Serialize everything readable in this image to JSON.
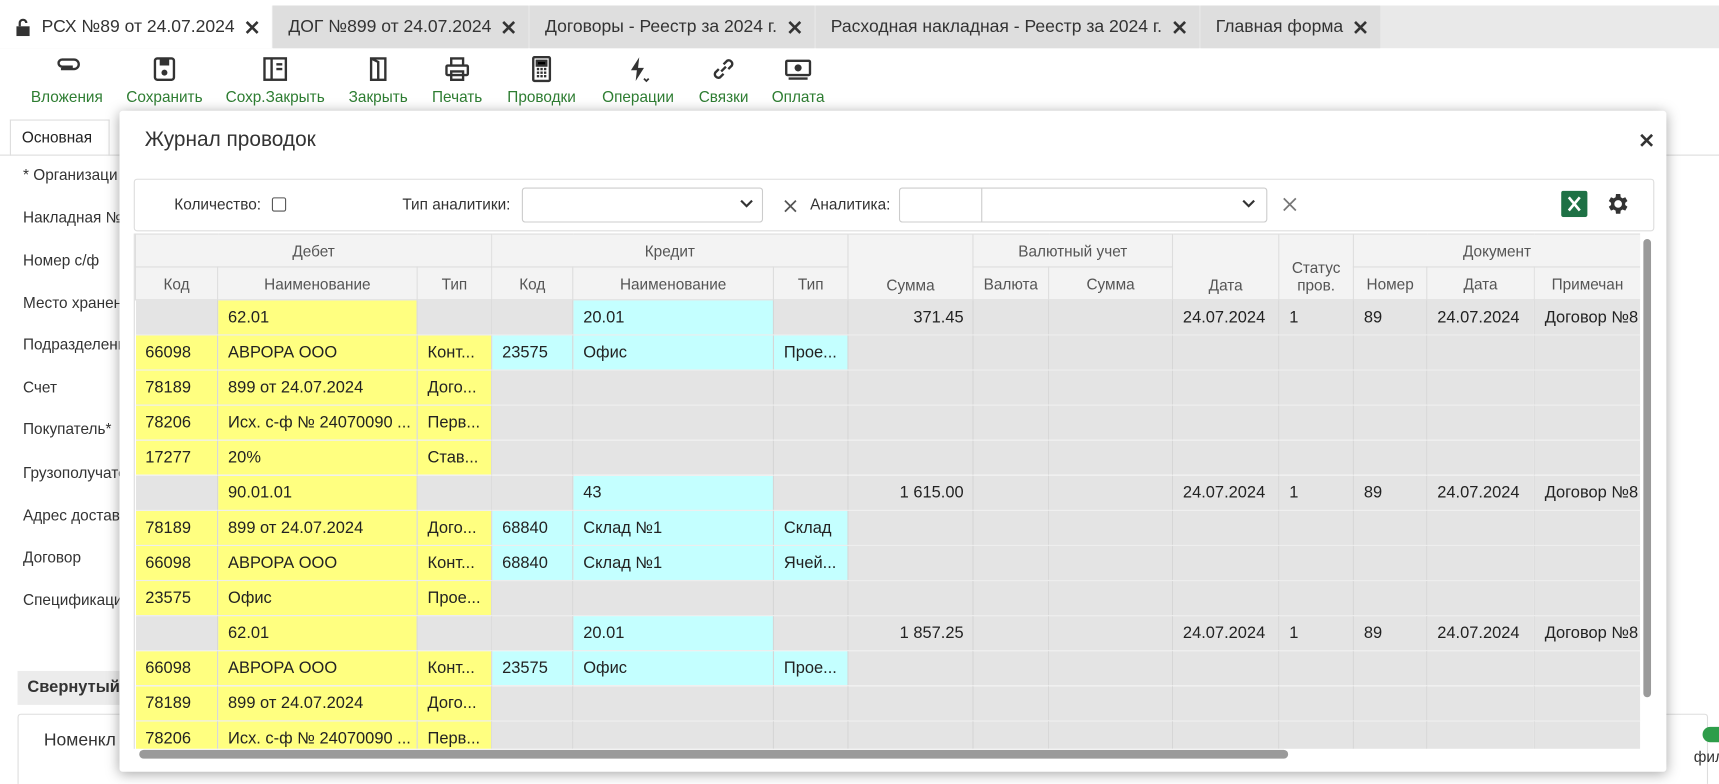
{
  "tabs": [
    "РСХ №89 от 24.07.2024",
    "ДОГ №899 от 24.07.2024",
    "Договоры - Реестр за 2024 г.",
    "Расходная накладная - Реестр за 2024 г.",
    "Главная форма"
  ],
  "toolbar": [
    "Вложения",
    "Сохранить",
    "Сохр.Закрыть",
    "Закрыть",
    "Печать",
    "Проводки",
    "Операции",
    "Связки",
    "Оплата"
  ],
  "form": {
    "tab": "Основная",
    "labels": [
      "* Организаци",
      "Накладная №",
      "Номер с/ф",
      "Место хранен",
      "Подразделени",
      "Счет",
      "Покупатель*",
      "Грузополучате",
      "Адрес доставк",
      "Договор",
      "Спецификаци"
    ],
    "collapsed": "Свернутый",
    "panel": "Номенкл",
    "right_label": "фил"
  },
  "dialog": {
    "title": "Журнал проводок",
    "filters": {
      "quantity": "Количество:",
      "analytics_type": "Тип аналитики:",
      "analytics": "Аналитика:"
    },
    "groups": [
      "Дебет",
      "Кредит",
      "Валютный учет",
      "Документ"
    ],
    "columns": [
      "Код",
      "Наименование",
      "Тип",
      "Код",
      "Наименование",
      "Тип",
      "Сумма",
      "Валюта",
      "Сумма",
      "Дата",
      "Статус пров.",
      "Номер",
      "Дата",
      "Примечан"
    ],
    "rows": [
      [
        null,
        "62.01",
        null,
        null,
        "20.01",
        null,
        "371.45",
        null,
        null,
        "24.07.2024",
        "1",
        "89",
        "24.07.2024",
        "Договор №8"
      ],
      [
        "66098",
        "АВРОРА ООО",
        "Конт...",
        "23575",
        "Офис",
        "Прое...",
        null,
        null,
        null,
        null,
        null,
        null,
        null,
        null
      ],
      [
        "78189",
        "899 от 24.07.2024",
        "Дого...",
        null,
        null,
        null,
        null,
        null,
        null,
        null,
        null,
        null,
        null,
        null
      ],
      [
        "78206",
        "Исх. с-ф № 24070090 ...",
        "Перв...",
        null,
        null,
        null,
        null,
        null,
        null,
        null,
        null,
        null,
        null,
        null
      ],
      [
        "17277",
        "20%",
        "Став...",
        null,
        null,
        null,
        null,
        null,
        null,
        null,
        null,
        null,
        null,
        null
      ],
      [
        null,
        "90.01.01",
        null,
        null,
        "43",
        null,
        "1 615.00",
        null,
        null,
        "24.07.2024",
        "1",
        "89",
        "24.07.2024",
        "Договор №8"
      ],
      [
        "78189",
        "899 от 24.07.2024",
        "Дого...",
        "68840",
        "Склад №1",
        "Склад",
        null,
        null,
        null,
        null,
        null,
        null,
        null,
        null
      ],
      [
        "66098",
        "АВРОРА ООО",
        "Конт...",
        "68840",
        "Склад №1",
        "Ячей...",
        null,
        null,
        null,
        null,
        null,
        null,
        null,
        null
      ],
      [
        "23575",
        "Офис",
        "Прое...",
        null,
        null,
        null,
        null,
        null,
        null,
        null,
        null,
        null,
        null,
        null
      ],
      [
        null,
        "62.01",
        null,
        null,
        "20.01",
        null,
        "1 857.25",
        null,
        null,
        "24.07.2024",
        "1",
        "89",
        "24.07.2024",
        "Договор №8"
      ],
      [
        "66098",
        "АВРОРА ООО",
        "Конт...",
        "23575",
        "Офис",
        "Прое...",
        null,
        null,
        null,
        null,
        null,
        null,
        null,
        null
      ],
      [
        "78189",
        "899 от 24.07.2024",
        "Дого...",
        null,
        null,
        null,
        null,
        null,
        null,
        null,
        null,
        null,
        null,
        null
      ],
      [
        "78206",
        "Исх. с-ф № 24070090 ...",
        "Перв...",
        null,
        null,
        null,
        null,
        null,
        null,
        null,
        null,
        null,
        null,
        null
      ]
    ]
  }
}
